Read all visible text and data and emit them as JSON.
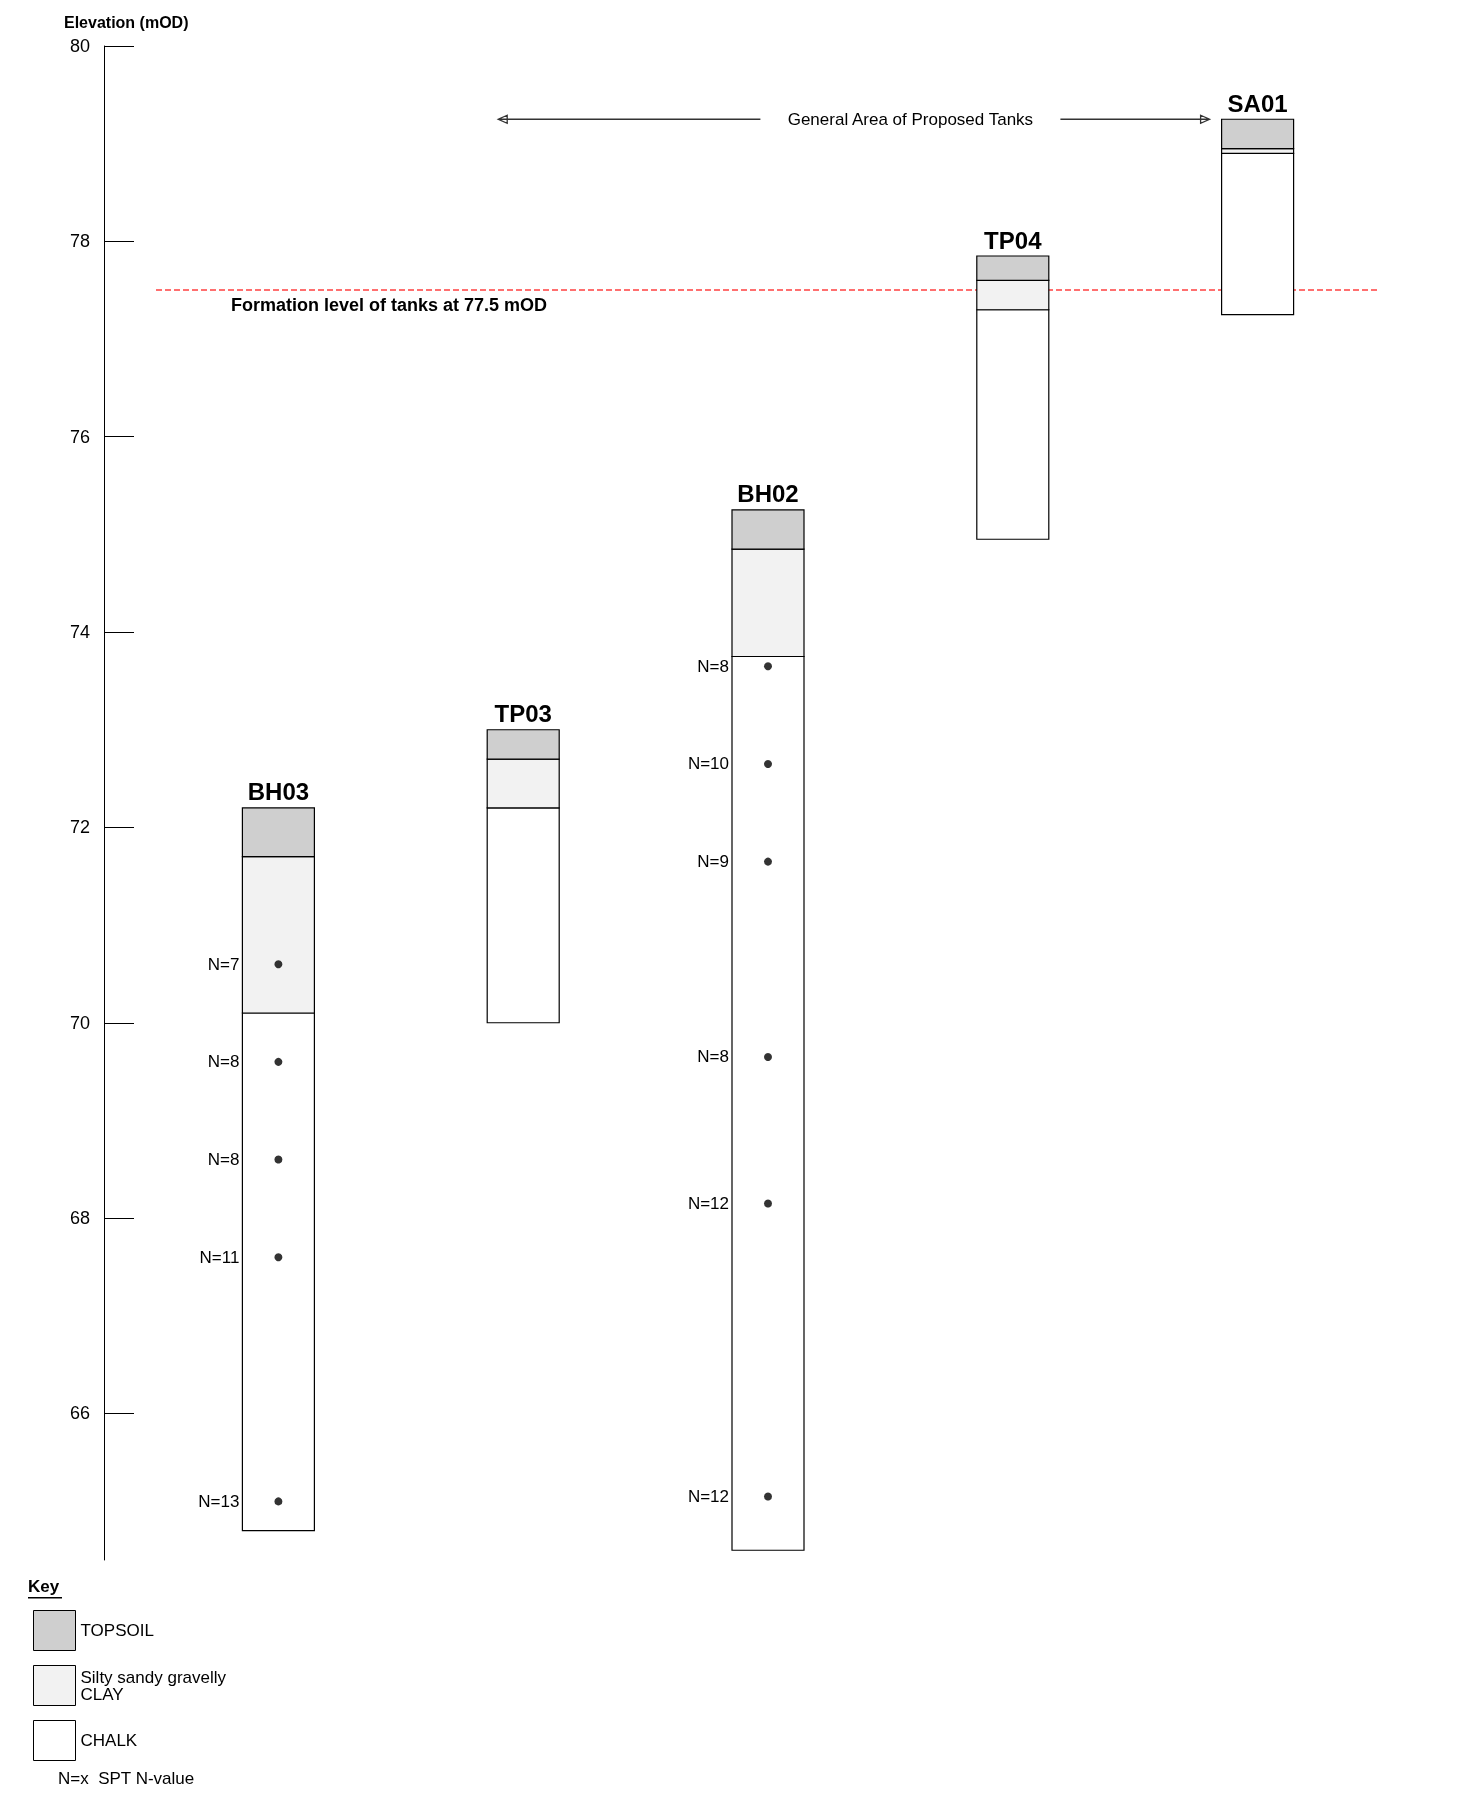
{
  "chart_data": {
    "type": "bar",
    "ylabel": "Elevation (mOD)",
    "legend_title": "Key",
    "legend": "bottom left",
    "grid": false,
    "categories": [
      "BH03",
      "TP03",
      "BH02",
      "TP04",
      "SA01"
    ],
    "series": [
      {
        "name": "CHALK",
        "color": "#ffffff",
        "base": [
          64.8,
          70.0,
          64.6,
          74.95,
          77.25
        ],
        "values": [
          5.3,
          2.2,
          9.15,
          2.35,
          1.65
        ]
      },
      {
        "name": "Silty sandy gravelly CLAY",
        "color": "#f2f2f2",
        "base": [
          70.1,
          72.2,
          73.75,
          77.3,
          78.9
        ],
        "values": [
          1.6,
          0.5,
          1.1,
          0.3,
          0.05
        ]
      },
      {
        "name": "TOPSOIL",
        "color": "#cfcfcf",
        "base": [
          71.7,
          72.7,
          74.85,
          77.6,
          78.95
        ],
        "values": [
          0.5,
          0.3,
          0.4,
          0.25,
          0.3
        ]
      },
      {
        "type": "scatter",
        "color": "#000000",
        "marker": "circle",
        "x": [
          "BH03",
          "BH03",
          "BH03",
          "BH03",
          "BH03",
          "BH02",
          "BH02",
          "BH02",
          "BH02",
          "BH02",
          "BH02"
        ],
        "values": [
          70.6,
          69.6,
          68.6,
          67.6,
          65.1,
          73.65,
          72.65,
          71.65,
          69.65,
          68.15,
          65.15
        ]
      }
    ],
    "ylim": [
      64.5,
      80
    ],
    "yticks": [
      66,
      68,
      70,
      72,
      74,
      76,
      78,
      80
    ],
    "ref_lines": [
      {
        "axis": "y",
        "value": 77.5,
        "label": "Formation level of tanks at 77.5 mOD",
        "color": "#ff4040",
        "line_style": "dashed"
      }
    ],
    "annotations": [
      "General Area of Proposed Tanks",
      "N=x  SPT N-value",
      {
        "text": "N=7",
        "x": "BH03",
        "y": 70.6
      },
      {
        "text": "N=8",
        "x": "BH03",
        "y": 69.6
      },
      {
        "text": "N=8",
        "x": "BH03",
        "y": 68.6
      },
      {
        "text": "N=11",
        "x": "BH03",
        "y": 67.6
      },
      {
        "text": "N=13",
        "x": "BH03",
        "y": 65.1
      },
      {
        "text": "N=8",
        "x": "BH02",
        "y": 73.65
      },
      {
        "text": "N=10",
        "x": "BH02",
        "y": 72.65
      },
      {
        "text": "N=9",
        "x": "BH02",
        "y": 71.65
      },
      {
        "text": "N=8",
        "x": "BH02",
        "y": 69.65
      },
      {
        "text": "N=12",
        "x": "BH02",
        "y": 68.15
      },
      {
        "text": "N=12",
        "x": "BH02",
        "y": 65.15
      }
    ]
  }
}
